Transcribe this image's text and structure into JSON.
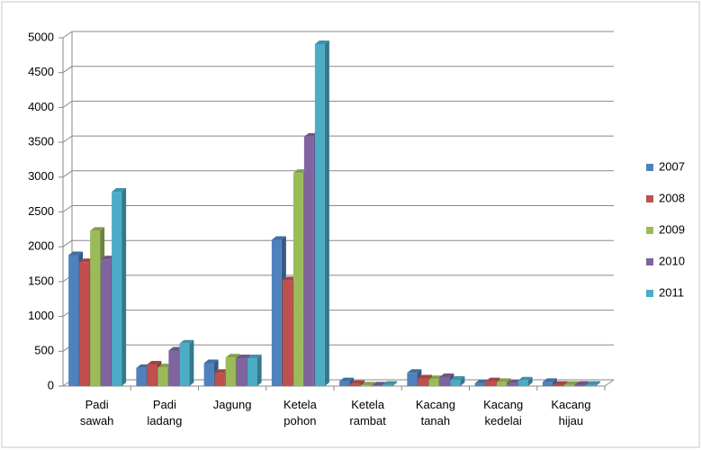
{
  "chart_data": {
    "type": "bar",
    "categories": [
      "Padi sawah",
      "Padi ladang",
      "Jagung",
      "Ketela pohon",
      "Ketela rambat",
      "Kacang tanah",
      "Kacang kedelai",
      "Kacang hijau"
    ],
    "series": [
      {
        "name": "2007",
        "color": "#4f81bd",
        "values": [
          1880,
          260,
          330,
          2100,
          70,
          190,
          40,
          60
        ]
      },
      {
        "name": "2008",
        "color": "#c0504d",
        "values": [
          1780,
          310,
          190,
          1520,
          30,
          110,
          70,
          20
        ]
      },
      {
        "name": "2009",
        "color": "#9bbb59",
        "values": [
          2230,
          270,
          410,
          3060,
          10,
          100,
          60,
          20
        ]
      },
      {
        "name": "2010",
        "color": "#8064a2",
        "values": [
          1820,
          510,
          400,
          3580,
          10,
          130,
          40,
          20
        ]
      },
      {
        "name": "2011",
        "color": "#4bacc6",
        "values": [
          2790,
          610,
          400,
          4910,
          20,
          90,
          80,
          20
        ]
      }
    ],
    "ylim": [
      0,
      5000
    ],
    "yticks": [
      0,
      500,
      1000,
      1500,
      2000,
      2500,
      3000,
      3500,
      4000,
      4500,
      5000
    ],
    "grid": true,
    "legend": "right"
  }
}
